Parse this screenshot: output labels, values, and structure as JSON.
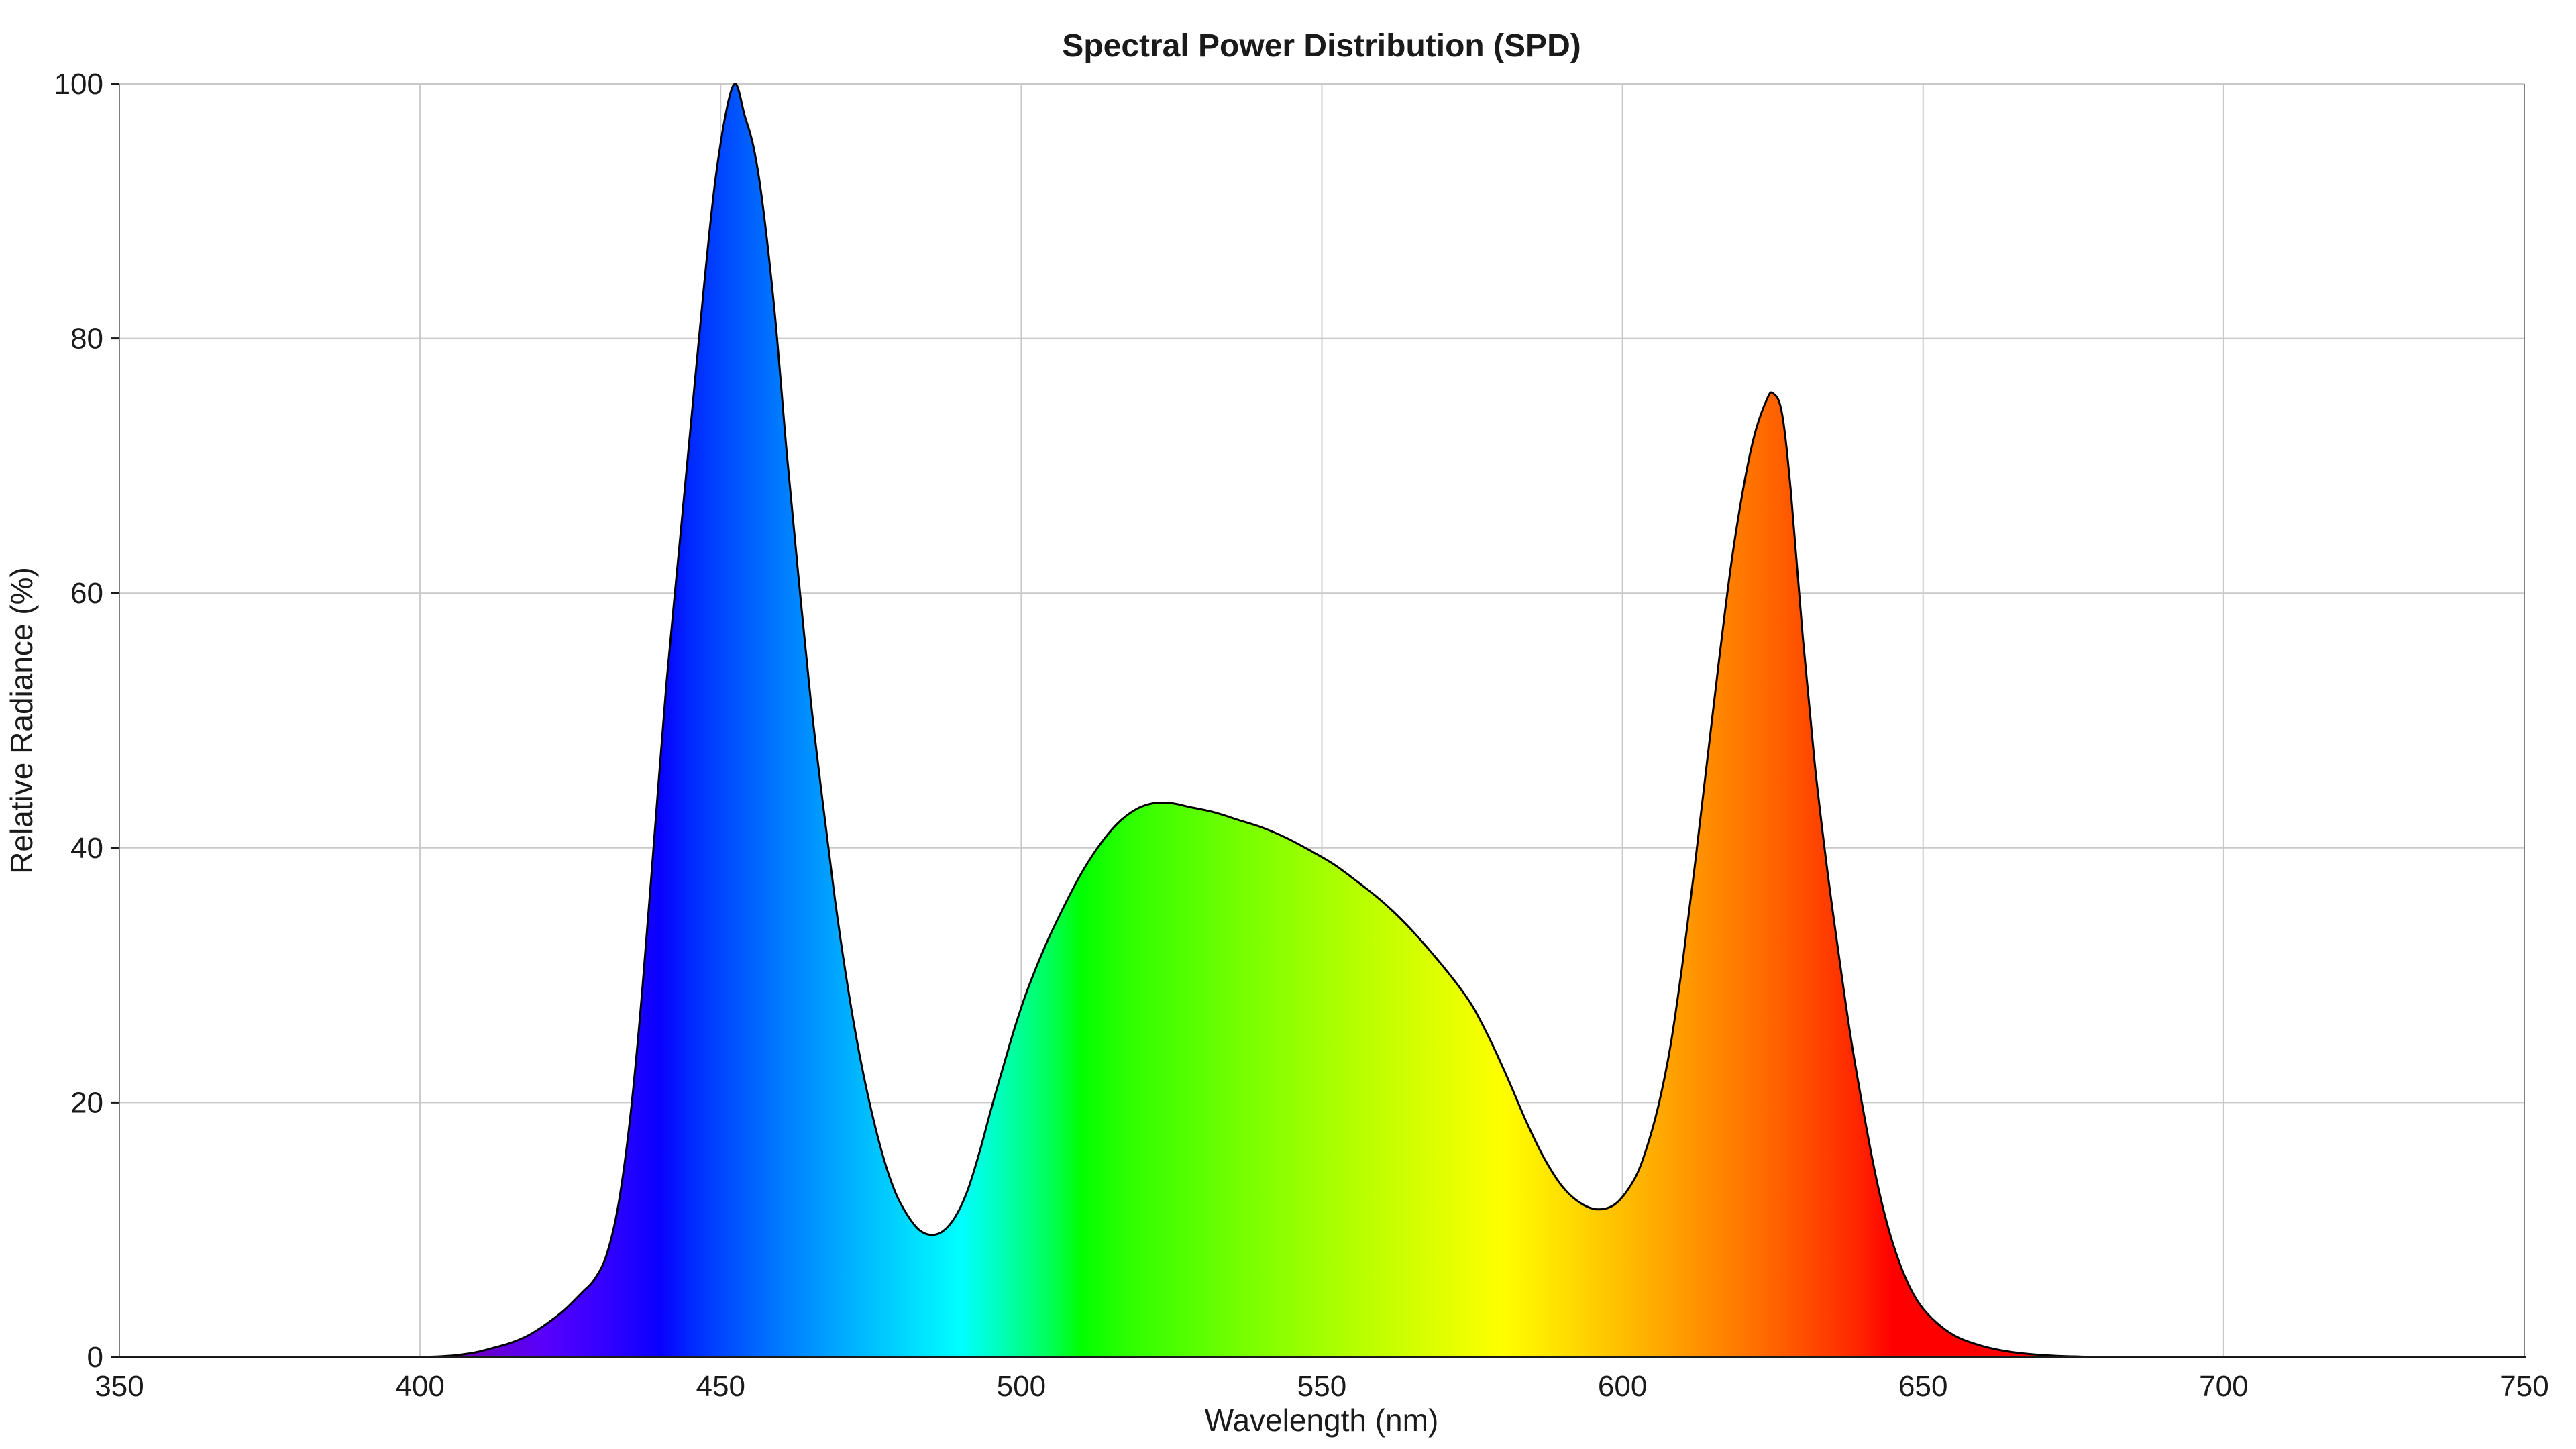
{
  "title": "Spectral Power Distribution (SPD)",
  "axes": {
    "x_label": "Wavelength (nm)",
    "y_label": "Relative Radiance (%)",
    "x_ticks": [
      350,
      400,
      450,
      500,
      550,
      600,
      650,
      700,
      750
    ],
    "y_ticks": [
      0,
      20,
      40,
      60,
      80,
      100
    ]
  },
  "colors": {
    "background": "#ffffff",
    "grid": "#c9c9c9",
    "spine": "#808080",
    "axis_bottom": "#1a1a1a",
    "curve_outline": "#000000",
    "text": "#1a1a1a"
  },
  "chart_data": {
    "type": "area",
    "title": "Spectral Power Distribution (SPD)",
    "xlabel": "Wavelength (nm)",
    "ylabel": "Relative Radiance (%)",
    "xlim": [
      350,
      750
    ],
    "ylim": [
      0,
      100
    ],
    "grid": true,
    "legend": false,
    "description": "Single filled SPD curve; fill is a horizontal spectral-color gradient (wavelength to visible color). Blue LED peak ~100% at ~452nm, dip ~9.5% at ~484nm, broad green phosphor hump ~43.5% peaking ~523nm, dip ~11.6% at ~596nm, red peak ~75.7% at ~625nm, tail to zero by ~680nm.",
    "points": [
      [
        400,
        0
      ],
      [
        403,
        0.05
      ],
      [
        406,
        0.15
      ],
      [
        409,
        0.35
      ],
      [
        412,
        0.7
      ],
      [
        415,
        1.1
      ],
      [
        418,
        1.7
      ],
      [
        421,
        2.6
      ],
      [
        424,
        3.7
      ],
      [
        427,
        5.1
      ],
      [
        429,
        6.1
      ],
      [
        431,
        8
      ],
      [
        433,
        12
      ],
      [
        435,
        19
      ],
      [
        437,
        29
      ],
      [
        439,
        41
      ],
      [
        441,
        53
      ],
      [
        443,
        63
      ],
      [
        445,
        73
      ],
      [
        447,
        83
      ],
      [
        449,
        92
      ],
      [
        451,
        98
      ],
      [
        452.5,
        100
      ],
      [
        454,
        97.5
      ],
      [
        455.5,
        95
      ],
      [
        457,
        90.5
      ],
      [
        459,
        82
      ],
      [
        461,
        71
      ],
      [
        463,
        61
      ],
      [
        465,
        51.5
      ],
      [
        467,
        43.5
      ],
      [
        469,
        36
      ],
      [
        471,
        29.5
      ],
      [
        473,
        24
      ],
      [
        475,
        19.5
      ],
      [
        477,
        15.8
      ],
      [
        479,
        13
      ],
      [
        481,
        11.2
      ],
      [
        483,
        10
      ],
      [
        485,
        9.6
      ],
      [
        487,
        9.9
      ],
      [
        489,
        11
      ],
      [
        491,
        13
      ],
      [
        493,
        16
      ],
      [
        495,
        19.5
      ],
      [
        497,
        22.8
      ],
      [
        499,
        26
      ],
      [
        501,
        28.8
      ],
      [
        504,
        32.3
      ],
      [
        507,
        35.3
      ],
      [
        510,
        38
      ],
      [
        513,
        40.2
      ],
      [
        516,
        41.9
      ],
      [
        519,
        43
      ],
      [
        522,
        43.5
      ],
      [
        525,
        43.5
      ],
      [
        528,
        43.2
      ],
      [
        532,
        42.8
      ],
      [
        536,
        42.2
      ],
      [
        540,
        41.6
      ],
      [
        544,
        40.8
      ],
      [
        548,
        39.8
      ],
      [
        552,
        38.7
      ],
      [
        556,
        37.3
      ],
      [
        560,
        35.8
      ],
      [
        564,
        34
      ],
      [
        568,
        31.9
      ],
      [
        572,
        29.6
      ],
      [
        575,
        27.6
      ],
      [
        578,
        24.9
      ],
      [
        581,
        21.8
      ],
      [
        584,
        18.5
      ],
      [
        587,
        15.6
      ],
      [
        590,
        13.4
      ],
      [
        593,
        12.1
      ],
      [
        596,
        11.6
      ],
      [
        599,
        12.1
      ],
      [
        602,
        14
      ],
      [
        604,
        16.4
      ],
      [
        606,
        19.8
      ],
      [
        608,
        24.5
      ],
      [
        610,
        31
      ],
      [
        612,
        38.5
      ],
      [
        614,
        46.5
      ],
      [
        616,
        54.5
      ],
      [
        618,
        62
      ],
      [
        620,
        68
      ],
      [
        622,
        72.5
      ],
      [
        624,
        75.2
      ],
      [
        625,
        75.7
      ],
      [
        626.5,
        74.2
      ],
      [
        628,
        68
      ],
      [
        630,
        56.5
      ],
      [
        632,
        46.5
      ],
      [
        634,
        38.5
      ],
      [
        636,
        31.5
      ],
      [
        638,
        25
      ],
      [
        640,
        19.5
      ],
      [
        642,
        14.5
      ],
      [
        644,
        10.5
      ],
      [
        646,
        7.5
      ],
      [
        648,
        5.3
      ],
      [
        650,
        3.8
      ],
      [
        653,
        2.4
      ],
      [
        656,
        1.5
      ],
      [
        660,
        0.85
      ],
      [
        664,
        0.45
      ],
      [
        668,
        0.22
      ],
      [
        672,
        0.1
      ],
      [
        676,
        0.04
      ],
      [
        680,
        0
      ]
    ],
    "spectrum_stops": [
      {
        "nm": 400,
        "color": "#6E009E"
      },
      {
        "nm": 405,
        "color": "#6C00B4"
      },
      {
        "nm": 410,
        "color": "#6900C8"
      },
      {
        "nm": 415,
        "color": "#6000E2"
      },
      {
        "nm": 420,
        "color": "#5A00F8"
      },
      {
        "nm": 425,
        "color": "#4800FF"
      },
      {
        "nm": 430,
        "color": "#3600FF"
      },
      {
        "nm": 435,
        "color": "#2100FF"
      },
      {
        "nm": 440,
        "color": "#0800FF"
      },
      {
        "nm": 445,
        "color": "#0028FF"
      },
      {
        "nm": 450,
        "color": "#0046FF"
      },
      {
        "nm": 455,
        "color": "#0061FF"
      },
      {
        "nm": 460,
        "color": "#007AFF"
      },
      {
        "nm": 465,
        "color": "#0092FF"
      },
      {
        "nm": 470,
        "color": "#00AAFF"
      },
      {
        "nm": 475,
        "color": "#00C0FF"
      },
      {
        "nm": 480,
        "color": "#00D5FF"
      },
      {
        "nm": 485,
        "color": "#00EAFF"
      },
      {
        "nm": 490,
        "color": "#00FFFF"
      },
      {
        "nm": 495,
        "color": "#00FFCA"
      },
      {
        "nm": 500,
        "color": "#00FF92"
      },
      {
        "nm": 505,
        "color": "#00FF54"
      },
      {
        "nm": 510,
        "color": "#00FF00"
      },
      {
        "nm": 515,
        "color": "#1FFF00"
      },
      {
        "nm": 520,
        "color": "#36FF00"
      },
      {
        "nm": 525,
        "color": "#4AFF00"
      },
      {
        "nm": 530,
        "color": "#5DFF00"
      },
      {
        "nm": 535,
        "color": "#70FF00"
      },
      {
        "nm": 540,
        "color": "#81FF00"
      },
      {
        "nm": 545,
        "color": "#92FF00"
      },
      {
        "nm": 550,
        "color": "#A3FF00"
      },
      {
        "nm": 555,
        "color": "#B3FF00"
      },
      {
        "nm": 560,
        "color": "#C3FF00"
      },
      {
        "nm": 565,
        "color": "#D2FF00"
      },
      {
        "nm": 570,
        "color": "#E1FF00"
      },
      {
        "nm": 575,
        "color": "#F0FF00"
      },
      {
        "nm": 580,
        "color": "#FFFF00"
      },
      {
        "nm": 585,
        "color": "#FFEF00"
      },
      {
        "nm": 590,
        "color": "#FFDF00"
      },
      {
        "nm": 595,
        "color": "#FFCF00"
      },
      {
        "nm": 600,
        "color": "#FFBE00"
      },
      {
        "nm": 605,
        "color": "#FFAD00"
      },
      {
        "nm": 610,
        "color": "#FF9B00"
      },
      {
        "nm": 615,
        "color": "#FF8900"
      },
      {
        "nm": 620,
        "color": "#FF7700"
      },
      {
        "nm": 625,
        "color": "#FF6400"
      },
      {
        "nm": 630,
        "color": "#FF4F00"
      },
      {
        "nm": 635,
        "color": "#FF3900"
      },
      {
        "nm": 640,
        "color": "#FF2100"
      },
      {
        "nm": 645,
        "color": "#FF0000"
      },
      {
        "nm": 660,
        "color": "#FF0000"
      },
      {
        "nm": 680,
        "color": "#F50000"
      }
    ]
  }
}
